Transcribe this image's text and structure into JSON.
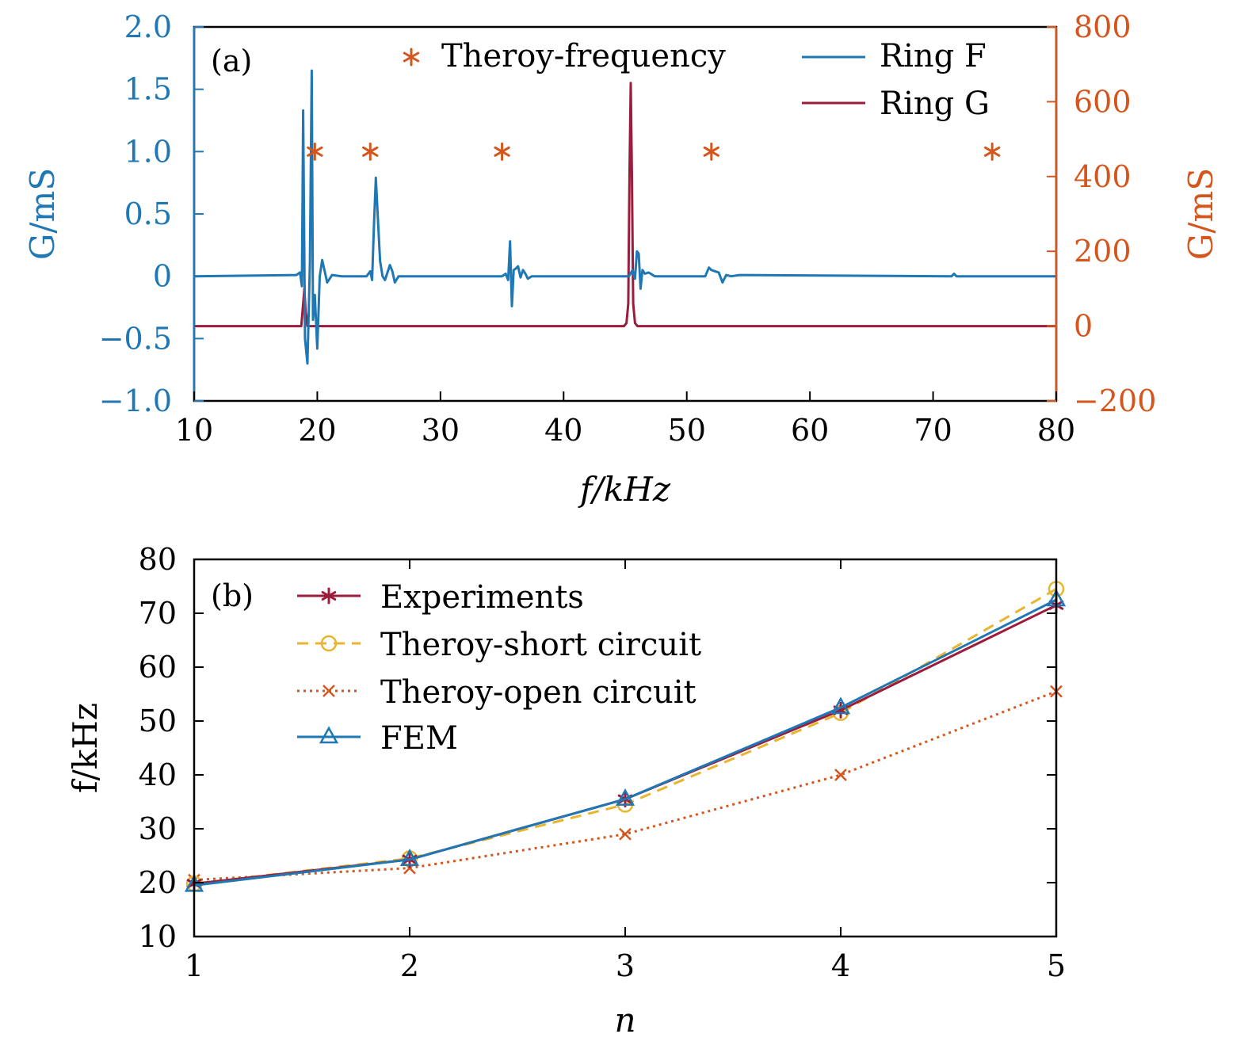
{
  "colors": {
    "ring_f": "#1f77b4",
    "ring_g": "#9b1c3c",
    "theory_star": "#d4561d",
    "left_axis": "#1f77b4",
    "right_axis": "#d4561d",
    "experiments": "#9b1c3c",
    "short_circuit": "#e8b530",
    "open_circuit": "#d4561d",
    "fem": "#1f77b4"
  },
  "chart_data": [
    {
      "type": "line",
      "panel_label": "(a)",
      "xlabel": "f/kHz",
      "ylabel_left": "G/mS",
      "ylabel_right": "G/mS",
      "xlim": [
        10,
        80
      ],
      "ylim_left": [
        -1.0,
        2.0
      ],
      "ylim_right": [
        -200,
        800
      ],
      "x_ticks": [
        "10",
        "20",
        "30",
        "40",
        "50",
        "60",
        "70",
        "80"
      ],
      "y_ticks_left": [
        "2.0",
        "1.5",
        "1.0",
        "0.5",
        "0",
        "−0.5",
        "−1.0"
      ],
      "y_ticks_right": [
        "800",
        "600",
        "400",
        "200",
        "0",
        "−200"
      ],
      "legend_position": "top-right",
      "series": [
        {
          "name": "Ring F",
          "axis": "left",
          "x": [
            10,
            18.3,
            18.6,
            18.75,
            18.85,
            19.0,
            19.2,
            19.4,
            19.55,
            19.65,
            19.8,
            20.0,
            20.2,
            20.4,
            20.6,
            20.8,
            21.2,
            22,
            24.0,
            24.3,
            24.45,
            24.6,
            24.75,
            24.9,
            25.1,
            25.3,
            25.5,
            25.7,
            25.9,
            26.1,
            26.3,
            26.6,
            27.2,
            35,
            35.3,
            35.5,
            35.65,
            35.8,
            35.95,
            36.1,
            36.3,
            36.5,
            36.7,
            36.9,
            37.1,
            37.4,
            38.0,
            45.3,
            45.6,
            45.8,
            45.95,
            46.1,
            46.25,
            46.4,
            46.6,
            46.9,
            47.4,
            51.5,
            51.8,
            52.0,
            52.3,
            52.6,
            52.9,
            53.2,
            53.6,
            54.3,
            71.5,
            71.7,
            71.9,
            80
          ],
          "y": [
            0.0,
            0.01,
            0.03,
            -0.08,
            1.33,
            -0.5,
            -0.7,
            0.1,
            1.65,
            -0.35,
            -0.15,
            -0.58,
            0.0,
            0.13,
            0.04,
            -0.05,
            0.01,
            0.0,
            0.0,
            0.04,
            -0.03,
            0.4,
            0.79,
            0.5,
            0.12,
            0.0,
            -0.03,
            0.03,
            0.09,
            0.04,
            -0.05,
            0.0,
            0.0,
            0.0,
            0.02,
            -0.03,
            0.28,
            -0.24,
            0.05,
            0.06,
            0.08,
            -0.01,
            0.05,
            0.02,
            -0.02,
            0.0,
            0.0,
            0.0,
            0.05,
            -0.02,
            0.2,
            0.18,
            -0.1,
            0.05,
            0.02,
            0.03,
            0.0,
            0.0,
            0.07,
            0.05,
            0.04,
            0.03,
            -0.05,
            0.01,
            0.0,
            0.01,
            0.0,
            0.02,
            0.0,
            0.0
          ]
        },
        {
          "name": "Ring G",
          "axis": "right",
          "x": [
            10,
            18.7,
            18.85,
            18.95,
            19.05,
            19.2,
            80
          ],
          "x_peak2": [
            44.9,
            45.1,
            45.25,
            45.35,
            45.45,
            45.55,
            45.65,
            45.8,
            46.0
          ],
          "y": [
            0,
            0,
            60,
            100,
            40,
            0,
            0
          ],
          "y_peak2": [
            0,
            8,
            60,
            400,
            650,
            400,
            60,
            8,
            0
          ]
        },
        {
          "name": "Theroy-frequency",
          "axis": "left",
          "marker": "star",
          "x": [
            19.8,
            24.3,
            35.0,
            52.0,
            74.8
          ],
          "y": [
            1.0,
            1.0,
            1.0,
            1.0,
            1.0
          ]
        }
      ]
    },
    {
      "type": "line",
      "panel_label": "(b)",
      "xlabel": "n",
      "ylabel": "f/kHz",
      "xlim": [
        1,
        5
      ],
      "ylim": [
        10,
        80
      ],
      "categories": [
        1,
        2,
        3,
        4,
        5
      ],
      "x_ticks": [
        "1",
        "2",
        "3",
        "4",
        "5"
      ],
      "y_ticks": [
        "80",
        "70",
        "60",
        "50",
        "40",
        "30",
        "20",
        "10"
      ],
      "legend_position": "top-left",
      "series": [
        {
          "name": "Experiments",
          "marker": "star",
          "dash": "solid",
          "values": [
            19.8,
            24.3,
            35.5,
            52.0,
            71.5
          ]
        },
        {
          "name": "Theroy-short circuit",
          "marker": "circle",
          "dash": "dashed",
          "values": [
            19.8,
            24.5,
            34.5,
            51.5,
            74.5
          ]
        },
        {
          "name": "Theroy-open circuit",
          "marker": "x",
          "dash": "dotted",
          "values": [
            20.5,
            22.7,
            29.0,
            40.0,
            55.5
          ]
        },
        {
          "name": "FEM",
          "marker": "triangle",
          "dash": "solid",
          "values": [
            19.5,
            24.3,
            35.5,
            52.5,
            72.5
          ]
        }
      ]
    }
  ]
}
